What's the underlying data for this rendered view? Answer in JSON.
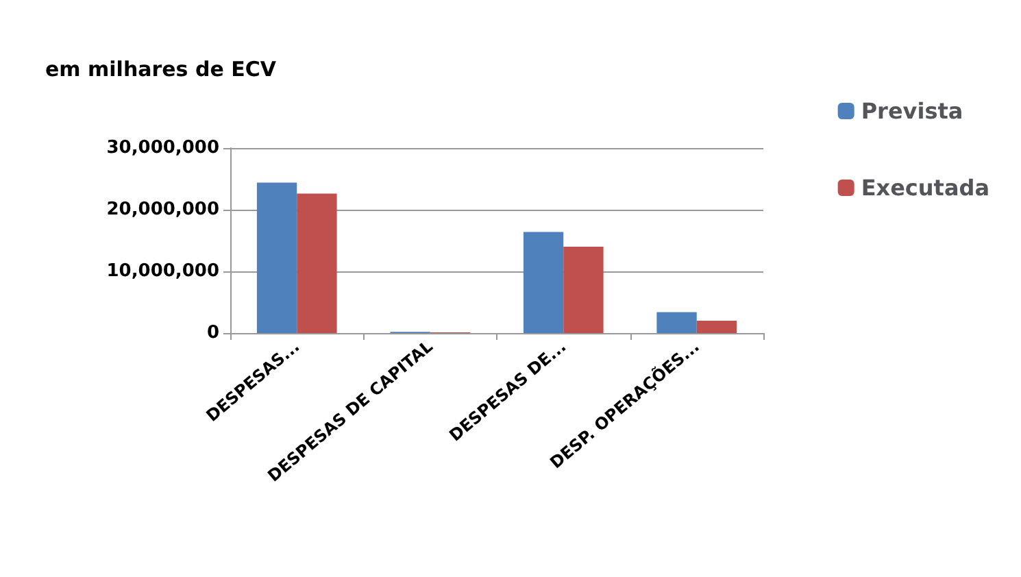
{
  "chart_data": {
    "type": "bar",
    "title": "em milhares de ECV",
    "categories": [
      "DESPESAS...",
      "DESPESAS DE CAPITAL",
      "DESPESAS DE...",
      "DESP. OPERAÇÕES..."
    ],
    "series": [
      {
        "name": "Prevista",
        "color": "#4f81bd",
        "values": [
          24400000,
          200000,
          16400000,
          3400000
        ]
      },
      {
        "name": "Executada",
        "color": "#c0504d",
        "values": [
          22600000,
          100000,
          14000000,
          2000000
        ]
      }
    ],
    "ylim": [
      0,
      30000000
    ],
    "yticks": [
      0,
      {
        "value": 10000000,
        "label": "10,000,000"
      },
      {
        "value": 20000000,
        "label": "20,000,000"
      },
      {
        "value": 30000000,
        "label": "30,000,000"
      }
    ],
    "grid": "y",
    "legend": "right"
  }
}
